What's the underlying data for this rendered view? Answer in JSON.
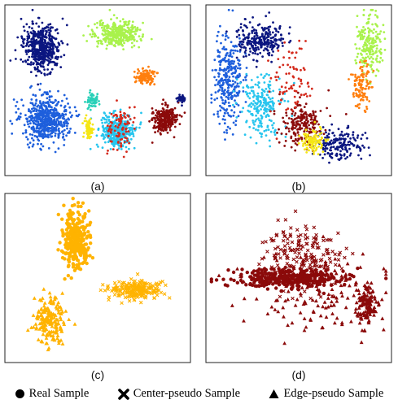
{
  "figure": {
    "panel_labels": [
      "(a)",
      "(b)",
      "(c)",
      "(d)"
    ]
  },
  "legend": {
    "items": [
      {
        "label": "Real Sample",
        "marker": "circle"
      },
      {
        "label": "Center-pseudo Sample",
        "marker": "cross"
      },
      {
        "label": "Edge-pseudo Sample",
        "marker": "triangle"
      }
    ]
  },
  "colors": {
    "navy": "#0b1680",
    "blue": "#1e5fdc",
    "lime": "#a9f24c",
    "orange": "#ff7f0e",
    "cyan": "#27c5ee",
    "darkred": "#8b0a0a",
    "yellow": "#f5e614",
    "gold": "#ffb300",
    "red": "#d42a1c",
    "teal": "#28d0b8"
  },
  "chart_data": [
    {
      "type": "scatter",
      "panel": "(a)",
      "grid": false,
      "ticks": false,
      "clusters": [
        {
          "color": "navy",
          "center": [
            0.2,
            0.25
          ],
          "spread": [
            0.09,
            0.12
          ],
          "points": 500,
          "marker": "circle"
        },
        {
          "color": "lime",
          "center": [
            0.6,
            0.17
          ],
          "spread": [
            0.11,
            0.07
          ],
          "points": 340,
          "marker": "circle"
        },
        {
          "color": "orange",
          "center": [
            0.76,
            0.42
          ],
          "spread": [
            0.05,
            0.04
          ],
          "points": 120,
          "marker": "circle"
        },
        {
          "color": "blue",
          "center": [
            0.22,
            0.67
          ],
          "spread": [
            0.11,
            0.12
          ],
          "points": 560,
          "marker": "circle"
        },
        {
          "color": "cyan",
          "center": [
            0.61,
            0.74
          ],
          "spread": [
            0.08,
            0.09
          ],
          "points": 340,
          "marker": "circle"
        },
        {
          "color": "teal",
          "center": [
            0.47,
            0.56
          ],
          "spread": [
            0.03,
            0.04
          ],
          "points": 60,
          "marker": "circle"
        },
        {
          "color": "yellow",
          "center": [
            0.45,
            0.73
          ],
          "spread": [
            0.02,
            0.05
          ],
          "points": 70,
          "marker": "circle"
        },
        {
          "color": "darkred",
          "center": [
            0.86,
            0.67
          ],
          "spread": [
            0.06,
            0.07
          ],
          "points": 260,
          "marker": "circle"
        },
        {
          "color": "navy",
          "center": [
            0.95,
            0.55
          ],
          "spread": [
            0.02,
            0.02
          ],
          "points": 40,
          "marker": "circle"
        },
        {
          "color": "red",
          "center": [
            0.62,
            0.72
          ],
          "spread": [
            0.06,
            0.13
          ],
          "points": 90,
          "marker": "circle"
        }
      ]
    },
    {
      "type": "scatter",
      "panel": "(b)",
      "grid": false,
      "ticks": false,
      "clusters": [
        {
          "color": "blue",
          "center": [
            0.12,
            0.45
          ],
          "spread": [
            0.07,
            0.25
          ],
          "points": 300,
          "marker": "circle"
        },
        {
          "color": "navy",
          "center": [
            0.3,
            0.2
          ],
          "spread": [
            0.12,
            0.09
          ],
          "points": 260,
          "marker": "circle"
        },
        {
          "color": "cyan",
          "center": [
            0.3,
            0.6
          ],
          "spread": [
            0.1,
            0.15
          ],
          "points": 220,
          "marker": "circle"
        },
        {
          "color": "darkred",
          "center": [
            0.52,
            0.7
          ],
          "spread": [
            0.1,
            0.12
          ],
          "points": 220,
          "marker": "circle"
        },
        {
          "color": "lime",
          "center": [
            0.88,
            0.22
          ],
          "spread": [
            0.06,
            0.16
          ],
          "points": 200,
          "marker": "circle"
        },
        {
          "color": "orange",
          "center": [
            0.84,
            0.48
          ],
          "spread": [
            0.05,
            0.12
          ],
          "points": 110,
          "marker": "circle"
        },
        {
          "color": "navy",
          "center": [
            0.72,
            0.82
          ],
          "spread": [
            0.12,
            0.08
          ],
          "points": 180,
          "marker": "circle"
        },
        {
          "color": "yellow",
          "center": [
            0.58,
            0.8
          ],
          "spread": [
            0.06,
            0.07
          ],
          "points": 100,
          "marker": "circle"
        },
        {
          "color": "red",
          "center": [
            0.45,
            0.45
          ],
          "spread": [
            0.1,
            0.2
          ],
          "points": 80,
          "marker": "circle"
        }
      ]
    },
    {
      "type": "scatter",
      "panel": "(c)",
      "grid": false,
      "ticks": false,
      "clusters": [
        {
          "color": "gold",
          "center": [
            0.38,
            0.27
          ],
          "spread": [
            0.07,
            0.15
          ],
          "points": 300,
          "marker": "circle"
        },
        {
          "color": "gold",
          "center": [
            0.71,
            0.57
          ],
          "spread": [
            0.13,
            0.05
          ],
          "points": 220,
          "marker": "cross"
        },
        {
          "color": "gold",
          "center": [
            0.24,
            0.75
          ],
          "spread": [
            0.07,
            0.12
          ],
          "points": 190,
          "marker": "triangle"
        }
      ]
    },
    {
      "type": "scatter",
      "panel": "(d)",
      "grid": false,
      "ticks": false,
      "clusters": [
        {
          "color": "darkred",
          "center": [
            0.45,
            0.5
          ],
          "spread": [
            0.28,
            0.05
          ],
          "points": 320,
          "marker": "circle"
        },
        {
          "color": "darkred",
          "center": [
            0.52,
            0.38
          ],
          "spread": [
            0.2,
            0.17
          ],
          "points": 200,
          "marker": "cross"
        },
        {
          "color": "darkred",
          "center": [
            0.62,
            0.6
          ],
          "spread": [
            0.32,
            0.22
          ],
          "points": 140,
          "marker": "triangle"
        },
        {
          "color": "darkred",
          "center": [
            0.86,
            0.66
          ],
          "spread": [
            0.05,
            0.12
          ],
          "points": 120,
          "marker": "triangle"
        }
      ]
    }
  ]
}
